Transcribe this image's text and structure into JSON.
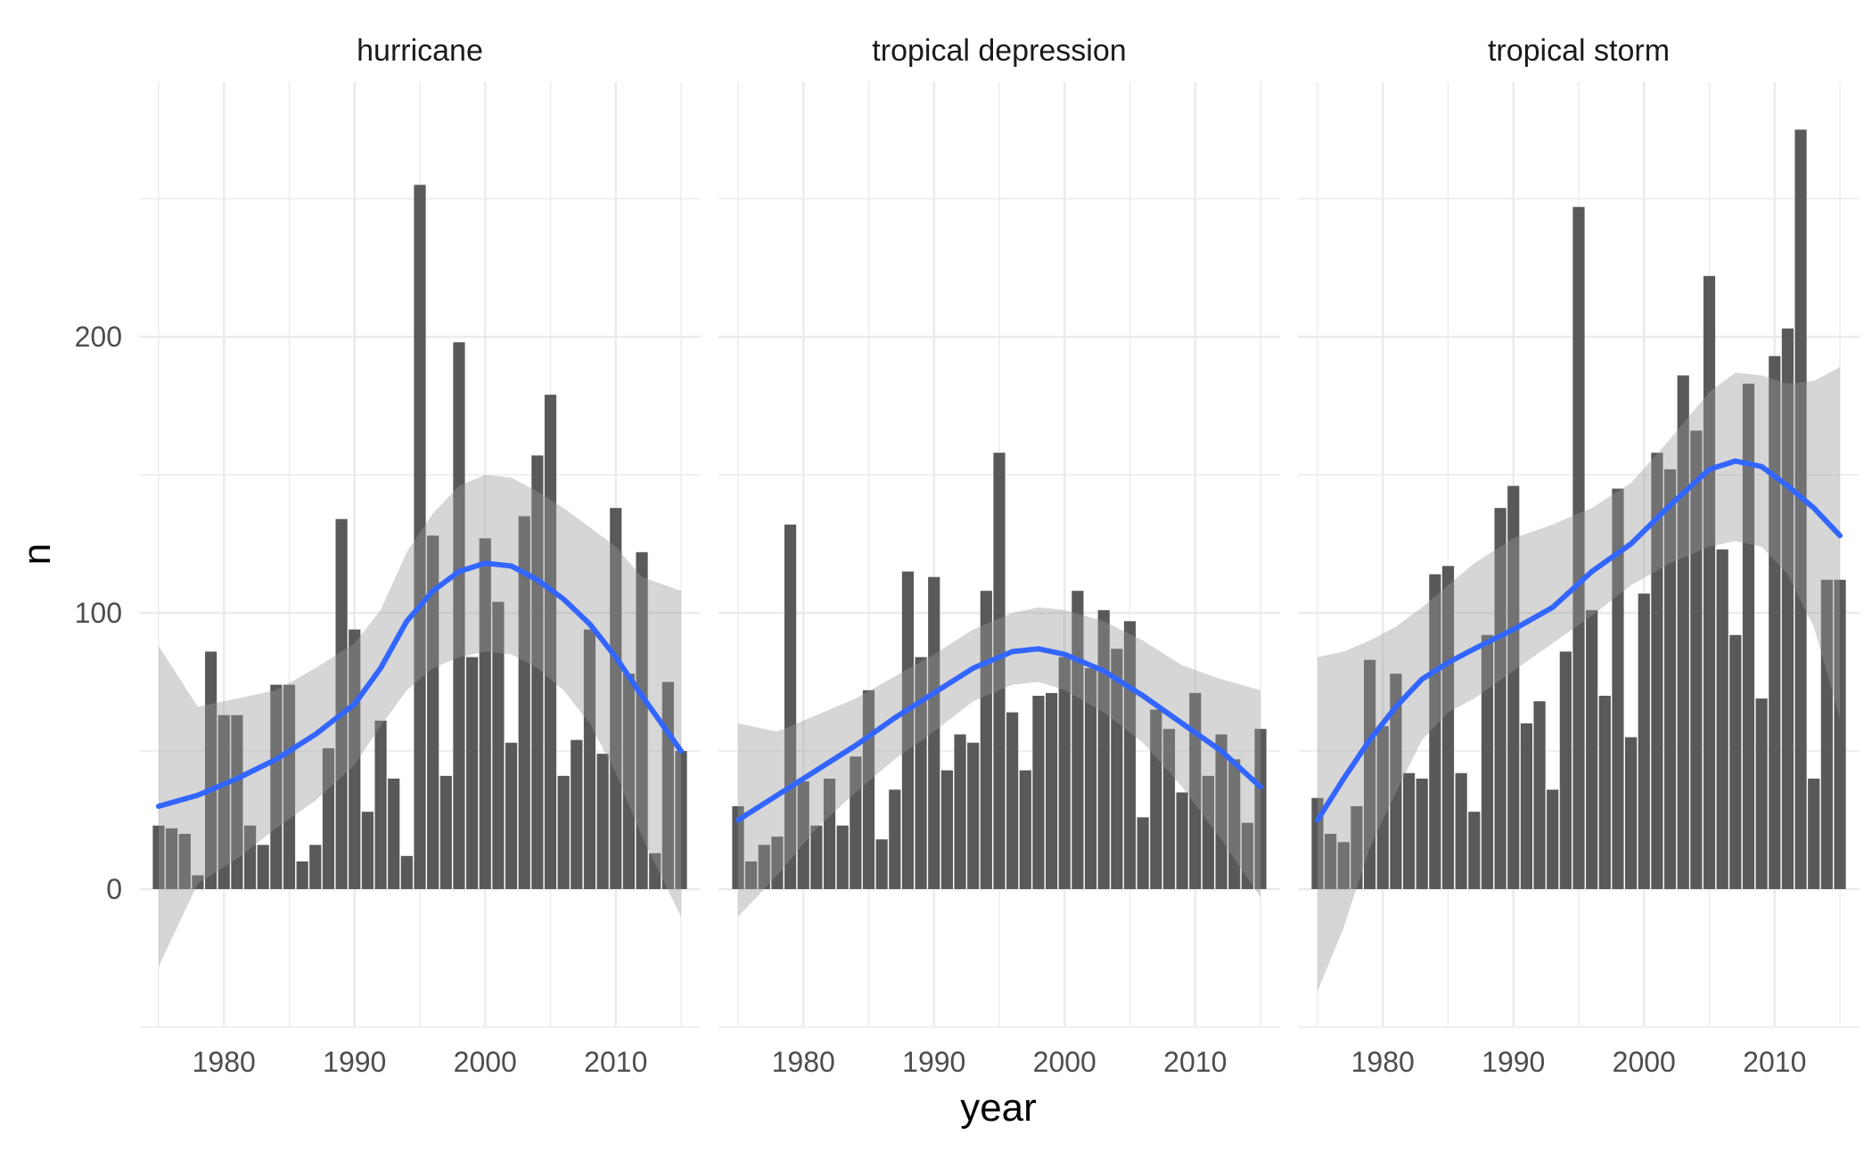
{
  "chart_data": {
    "type": "bar",
    "xlabel": "year",
    "ylabel": "n",
    "xlim": [
      1973.5,
      2016.5
    ],
    "ylim": [
      -50,
      280
    ],
    "x_breaks": [
      1980,
      1990,
      2000,
      2010
    ],
    "x_tick_labels": [
      "1980",
      "1990",
      "2000",
      "2010"
    ],
    "y_breaks": [
      0,
      100,
      200
    ],
    "y_tick_labels": [
      "0",
      "100",
      "200"
    ],
    "grid": true,
    "smooth_method": "loess",
    "colors": {
      "bar": "#595959",
      "smooth": "#3366ff",
      "ribbon": "#999999",
      "grid": "#ebebeb"
    },
    "years": [
      1975,
      1976,
      1977,
      1978,
      1979,
      1980,
      1981,
      1982,
      1983,
      1984,
      1985,
      1986,
      1987,
      1988,
      1989,
      1990,
      1991,
      1992,
      1993,
      1994,
      1995,
      1996,
      1997,
      1998,
      1999,
      2000,
      2001,
      2002,
      2003,
      2004,
      2005,
      2006,
      2007,
      2008,
      2009,
      2010,
      2011,
      2012,
      2013,
      2014,
      2015
    ],
    "panels": [
      {
        "title": "hurricane",
        "values": [
          23,
          22,
          20,
          5,
          86,
          63,
          63,
          23,
          16,
          74,
          74,
          10,
          16,
          51,
          134,
          94,
          28,
          61,
          40,
          12,
          255,
          128,
          41,
          198,
          84,
          127,
          104,
          53,
          135,
          157,
          179,
          41,
          54,
          94,
          49,
          138,
          78,
          122,
          13,
          75,
          50
        ],
        "smooth": [
          [
            1975,
            30
          ],
          [
            1978,
            34
          ],
          [
            1981,
            40
          ],
          [
            1984,
            47
          ],
          [
            1987,
            56
          ],
          [
            1990,
            67
          ],
          [
            1992,
            80
          ],
          [
            1994,
            97
          ],
          [
            1996,
            108
          ],
          [
            1998,
            115
          ],
          [
            2000,
            118
          ],
          [
            2002,
            117
          ],
          [
            2004,
            112
          ],
          [
            2006,
            105
          ],
          [
            2008,
            96
          ],
          [
            2010,
            84
          ],
          [
            2012,
            70
          ],
          [
            2015,
            50
          ]
        ],
        "ribbon": [
          [
            1975,
            -28,
            88
          ],
          [
            1978,
            2,
            66
          ],
          [
            1981,
            11,
            69
          ],
          [
            1984,
            22,
            72
          ],
          [
            1987,
            32,
            80
          ],
          [
            1990,
            45,
            89
          ],
          [
            1992,
            59,
            101
          ],
          [
            1994,
            72,
            122
          ],
          [
            1996,
            80,
            136
          ],
          [
            1998,
            84,
            146
          ],
          [
            2000,
            86,
            150
          ],
          [
            2002,
            85,
            149
          ],
          [
            2004,
            80,
            144
          ],
          [
            2006,
            72,
            138
          ],
          [
            2008,
            60,
            131
          ],
          [
            2010,
            42,
            124
          ],
          [
            2012,
            19,
            113
          ],
          [
            2015,
            -10,
            108
          ]
        ]
      },
      {
        "title": "tropical depression",
        "values": [
          30,
          10,
          16,
          19,
          132,
          39,
          23,
          40,
          23,
          48,
          72,
          18,
          36,
          115,
          84,
          113,
          43,
          56,
          53,
          108,
          158,
          64,
          43,
          70,
          71,
          84,
          108,
          80,
          101,
          87,
          97,
          26,
          65,
          58,
          35,
          71,
          41,
          56,
          47,
          24,
          58
        ],
        "smooth": [
          [
            1975,
            25
          ],
          [
            1978,
            34
          ],
          [
            1981,
            43
          ],
          [
            1984,
            52
          ],
          [
            1987,
            62
          ],
          [
            1990,
            71
          ],
          [
            1993,
            80
          ],
          [
            1996,
            86
          ],
          [
            1998,
            87
          ],
          [
            2000,
            85
          ],
          [
            2003,
            79
          ],
          [
            2006,
            70
          ],
          [
            2009,
            60
          ],
          [
            2012,
            50
          ],
          [
            2015,
            37
          ]
        ],
        "ribbon": [
          [
            1975,
            -10,
            60
          ],
          [
            1978,
            5,
            57
          ],
          [
            1981,
            22,
            63
          ],
          [
            1984,
            35,
            69
          ],
          [
            1987,
            47,
            77
          ],
          [
            1990,
            57,
            85
          ],
          [
            1993,
            68,
            94
          ],
          [
            1996,
            74,
            100
          ],
          [
            1998,
            75,
            102
          ],
          [
            2000,
            72,
            101
          ],
          [
            2003,
            64,
            97
          ],
          [
            2006,
            53,
            90
          ],
          [
            2009,
            37,
            81
          ],
          [
            2012,
            18,
            76
          ],
          [
            2015,
            -3,
            72
          ]
        ]
      },
      {
        "title": "tropical storm",
        "values": [
          33,
          20,
          17,
          30,
          83,
          59,
          78,
          42,
          40,
          114,
          117,
          42,
          28,
          92,
          138,
          146,
          60,
          68,
          36,
          86,
          247,
          101,
          70,
          145,
          55,
          107,
          158,
          152,
          186,
          166,
          222,
          123,
          92,
          183,
          69,
          193,
          203,
          275,
          40,
          112,
          112
        ],
        "smooth": [
          [
            1975,
            25
          ],
          [
            1977,
            40
          ],
          [
            1979,
            54
          ],
          [
            1981,
            66
          ],
          [
            1983,
            76
          ],
          [
            1985,
            82
          ],
          [
            1987,
            87
          ],
          [
            1990,
            94
          ],
          [
            1993,
            102
          ],
          [
            1996,
            115
          ],
          [
            1999,
            125
          ],
          [
            2002,
            139
          ],
          [
            2005,
            152
          ],
          [
            2007,
            155
          ],
          [
            2009,
            153
          ],
          [
            2011,
            146
          ],
          [
            2013,
            138
          ],
          [
            2015,
            128
          ]
        ],
        "ribbon": [
          [
            1975,
            -37,
            84
          ],
          [
            1977,
            -14,
            86
          ],
          [
            1979,
            15,
            90
          ],
          [
            1981,
            35,
            95
          ],
          [
            1983,
            54,
            102
          ],
          [
            1985,
            64,
            110
          ],
          [
            1987,
            69,
            118
          ],
          [
            1990,
            79,
            127
          ],
          [
            1993,
            89,
            132
          ],
          [
            1996,
            99,
            138
          ],
          [
            1999,
            110,
            147
          ],
          [
            2002,
            118,
            163
          ],
          [
            2005,
            124,
            180
          ],
          [
            2007,
            126,
            187
          ],
          [
            2009,
            124,
            186
          ],
          [
            2011,
            114,
            183
          ],
          [
            2013,
            95,
            184
          ],
          [
            2015,
            62,
            189
          ]
        ]
      }
    ]
  }
}
